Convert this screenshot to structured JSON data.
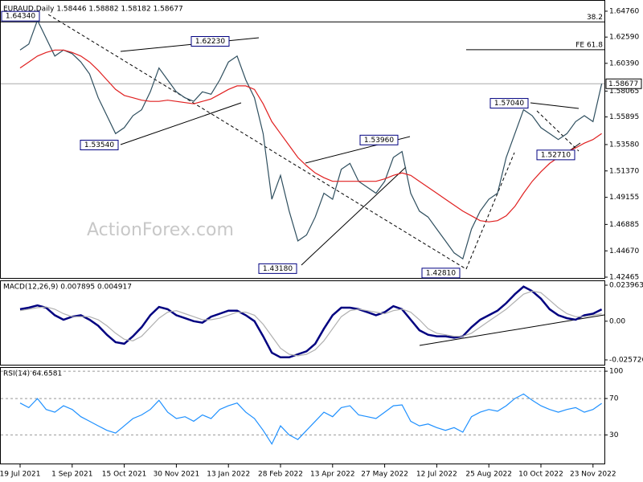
{
  "chart_data": [
    {
      "type": "line",
      "title": "EURAUD,Daily  1.58446 1.58882 1.58182 1.58677",
      "watermark": "ActionForex.com",
      "categories": [
        "19 Jul 2021",
        null,
        null,
        null,
        null,
        null,
        "1 Sep 2021",
        null,
        null,
        null,
        null,
        null,
        "15 Oct 2021",
        null,
        null,
        null,
        null,
        null,
        "30 Nov 2021",
        null,
        null,
        null,
        null,
        null,
        "13 Jan 2022",
        null,
        null,
        null,
        null,
        null,
        "28 Feb 2022",
        null,
        null,
        null,
        null,
        null,
        "13 Apr 2022",
        null,
        null,
        null,
        null,
        null,
        "27 May 2022",
        null,
        null,
        null,
        null,
        null,
        "12 Jul 2022",
        null,
        null,
        null,
        null,
        null,
        "25 Aug 2022",
        null,
        null,
        null,
        null,
        null,
        "10 Oct 2022",
        null,
        null,
        null,
        null,
        null,
        "23 Nov 2022",
        null
      ],
      "series": [
        {
          "color": "#2f4f5f",
          "values": [
            1.615,
            1.62,
            1.64,
            1.625,
            1.61,
            1.615,
            1.612,
            1.605,
            1.595,
            1.575,
            1.56,
            1.545,
            1.55,
            1.56,
            1.565,
            1.58,
            1.6,
            1.59,
            1.58,
            1.575,
            1.572,
            1.58,
            1.578,
            1.59,
            1.605,
            1.61,
            1.59,
            1.575,
            1.545,
            1.49,
            1.51,
            1.48,
            1.455,
            1.46,
            1.475,
            1.495,
            1.49,
            1.515,
            1.52,
            1.505,
            1.5,
            1.495,
            1.505,
            1.525,
            1.53,
            1.495,
            1.48,
            1.475,
            1.465,
            1.455,
            1.445,
            1.44,
            1.465,
            1.48,
            1.49,
            1.495,
            1.525,
            1.545,
            1.565,
            1.56,
            1.55,
            1.545,
            1.54,
            1.545,
            1.555,
            1.56,
            1.555,
            1.58677
          ]
        },
        {
          "color": "#e02020",
          "values": [
            1.6,
            1.605,
            1.61,
            1.613,
            1.615,
            1.615,
            1.613,
            1.61,
            1.605,
            1.598,
            1.59,
            1.582,
            1.577,
            1.575,
            1.573,
            1.572,
            1.572,
            1.573,
            1.572,
            1.571,
            1.57,
            1.572,
            1.574,
            1.578,
            1.582,
            1.585,
            1.585,
            1.582,
            1.57,
            1.555,
            1.545,
            1.535,
            1.525,
            1.518,
            1.512,
            1.508,
            1.505,
            1.505,
            1.505,
            1.505,
            1.505,
            1.505,
            1.507,
            1.51,
            1.512,
            1.51,
            1.505,
            1.5,
            1.495,
            1.49,
            1.485,
            1.48,
            1.476,
            1.472,
            1.471,
            1.472,
            1.476,
            1.484,
            1.495,
            1.505,
            1.513,
            1.52,
            1.525,
            1.53,
            1.533,
            1.537,
            1.54,
            1.545
          ]
        }
      ],
      "ylim": [
        1.4233,
        1.6516
      ],
      "yticks": [
        {
          "value": 1.6476,
          "label": "1.64760"
        },
        {
          "value": 1.6259,
          "label": "1.62590"
        },
        {
          "value": 1.6039,
          "label": "1.60390"
        },
        1.58065,
        1.55895,
        {
          "value": 1.5358,
          "label": "1.53580"
        },
        {
          "value": 1.5137,
          "label": "1.51370"
        },
        1.49155,
        1.46885,
        {
          "value": 1.4467,
          "label": "1.44670"
        },
        1.42465
      ],
      "annotations": [
        {
          "label": "1.64340",
          "value": 1.6434
        },
        {
          "label": "1.62230",
          "value": 1.6223
        },
        {
          "label": "1.53540",
          "value": 1.5354
        },
        {
          "label": "1.53960",
          "value": 1.5396
        },
        {
          "label": "1.57040",
          "value": 1.5704
        },
        {
          "label": "1.52710",
          "value": 1.5271
        },
        {
          "label": "1.43180",
          "value": 1.4318
        },
        {
          "label": "1.42810",
          "value": 1.4281
        }
      ],
      "levels": [
        {
          "label": "38.2",
          "value": 1.6386
        },
        {
          "label": "FE 61.8",
          "value": 1.6153
        }
      ]
    },
    {
      "type": "line",
      "title": "MACD(12,26,9) 0.007895 0.004917",
      "series": [
        {
          "color": "#000080",
          "values": [
            0.008,
            0.009,
            0.0105,
            0.009,
            0.004,
            0.001,
            0.003,
            0.004,
            0.001,
            -0.003,
            -0.009,
            -0.014,
            -0.015,
            -0.01,
            -0.004,
            0.004,
            0.0095,
            0.008,
            0.004,
            0.002,
            0,
            -0.001,
            0.003,
            0.005,
            0.007,
            0.007,
            0.004,
            0,
            -0.01,
            -0.021,
            -0.024,
            -0.024,
            -0.022,
            -0.02,
            -0.015,
            -0.005,
            0.004,
            0.009,
            0.009,
            0.008,
            0.006,
            0.004,
            0.006,
            0.01,
            0.008,
            0.001,
            -0.006,
            -0.009,
            -0.01,
            -0.01,
            -0.011,
            -0.01,
            -0.004,
            0.001,
            0.004,
            0.007,
            0.012,
            0.018,
            0.023,
            0.02,
            0.015,
            0.008,
            0.004,
            0.002,
            0.001,
            0.004,
            0.005,
            0.007895
          ]
        },
        {
          "color": "#b0b0b0",
          "values": [
            0.007,
            0.008,
            0.009,
            0.0095,
            0.008,
            0.005,
            0.003,
            0.003,
            0.003,
            0.001,
            -0.003,
            -0.008,
            -0.012,
            -0.013,
            -0.01,
            -0.004,
            0.002,
            0.006,
            0.007,
            0.005,
            0.003,
            0.001,
            0.001,
            0.002,
            0.004,
            0.006,
            0.006,
            0.004,
            -0.002,
            -0.01,
            -0.018,
            -0.022,
            -0.023,
            -0.022,
            -0.019,
            -0.013,
            -0.005,
            0.003,
            0.007,
            0.008,
            0.007,
            0.006,
            0.005,
            0.007,
            0.008,
            0.006,
            0.001,
            -0.005,
            -0.008,
            -0.009,
            -0.01,
            -0.01,
            -0.008,
            -0.004,
            0,
            0.004,
            0.008,
            0.013,
            0.018,
            0.02,
            0.019,
            0.014,
            0.009,
            0.005,
            0.003,
            0.003,
            0.004,
            0.004917
          ]
        }
      ],
      "ylim": [
        -0.02947,
        0.02663
      ],
      "yticks": [
        0.023963,
        {
          "value": 0,
          "label": "0.00"
        },
        -0.025726
      ]
    },
    {
      "type": "line",
      "title": "RSI(14) 64.6581",
      "series": [
        {
          "color": "#1e90ff",
          "values": [
            65,
            60,
            70,
            58,
            55,
            62,
            58,
            50,
            45,
            40,
            35,
            32,
            40,
            48,
            52,
            58,
            68,
            55,
            48,
            50,
            45,
            52,
            48,
            58,
            62,
            65,
            55,
            48,
            35,
            20,
            40,
            30,
            25,
            35,
            45,
            55,
            50,
            60,
            62,
            52,
            50,
            48,
            55,
            62,
            63,
            45,
            40,
            42,
            38,
            35,
            38,
            33,
            50,
            55,
            58,
            56,
            62,
            70,
            75,
            68,
            62,
            58,
            55,
            58,
            60,
            55,
            58,
            64.6581
          ]
        }
      ],
      "ylim": [
        -2.3,
        103.6
      ],
      "yticks": [
        100,
        70,
        30
      ],
      "grid": "dashed"
    }
  ]
}
